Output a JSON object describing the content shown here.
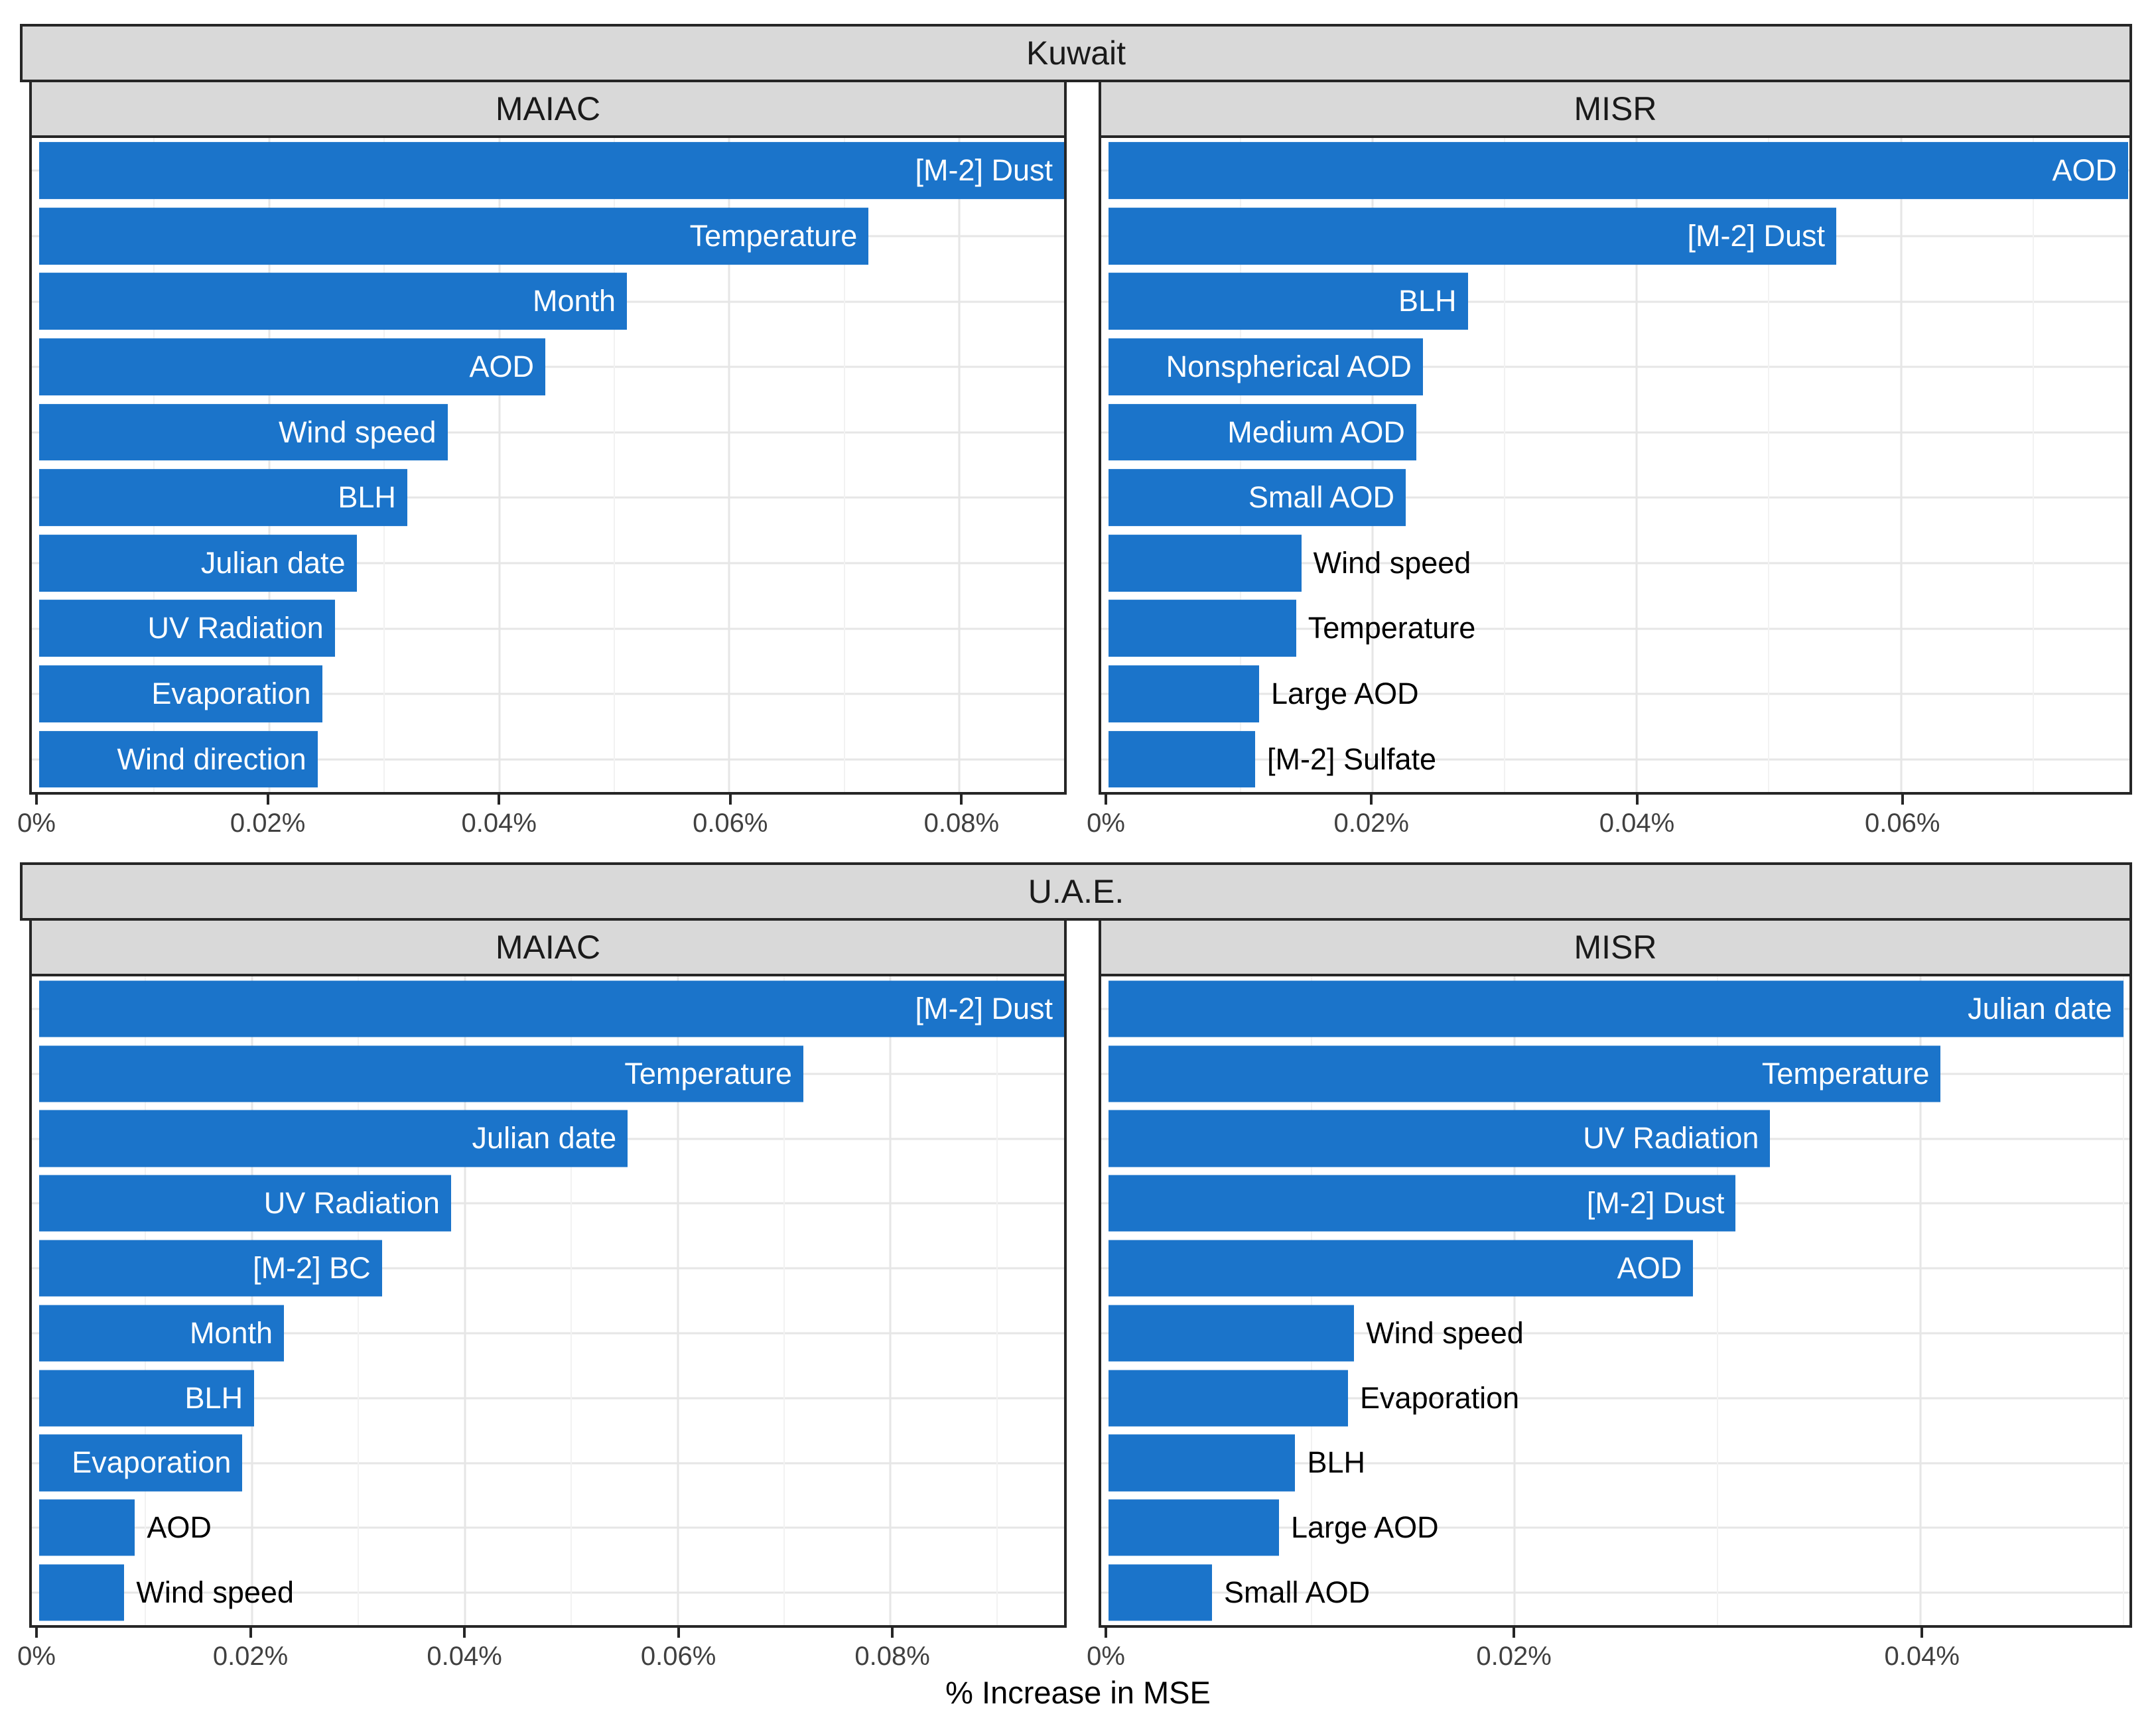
{
  "figure": {
    "xlabel": "% Increase in MSE",
    "colors": {
      "bar": "#1B74CA",
      "strip_bg": "#D9D9D9",
      "border": "#262626",
      "grid_major": "#E6E6E6",
      "grid_minor": "#F2F2F2",
      "tick_label": "#404040",
      "label_inside": "#FFFFFF",
      "label_outside": "#000000"
    }
  },
  "chart_data": [
    {
      "type": "bar",
      "orientation": "horizontal",
      "title": "Kuwait",
      "xlabel": "% Increase in MSE",
      "grid": true,
      "facets": [
        {
          "label": "MAIAC",
          "xlim": [
            0,
            0.0891
          ],
          "tick_values": [
            0,
            0.02,
            0.04,
            0.06,
            0.08
          ],
          "ticks": [
            "0%",
            "0.02%",
            "0.04%",
            "0.06%",
            "0.08%"
          ],
          "minor_step": 0.01,
          "tick_step": 0.02,
          "bars": [
            {
              "label": "[M-2] Dust",
              "value": 0.0891,
              "label_inside": true
            },
            {
              "label": "Temperature",
              "value": 0.0721,
              "label_inside": true
            },
            {
              "label": "Month",
              "value": 0.0511,
              "label_inside": true
            },
            {
              "label": "AOD",
              "value": 0.044,
              "label_inside": true
            },
            {
              "label": "Wind speed",
              "value": 0.0355,
              "label_inside": true
            },
            {
              "label": "BLH",
              "value": 0.032,
              "label_inside": true
            },
            {
              "label": "Julian date",
              "value": 0.0276,
              "label_inside": true
            },
            {
              "label": "UV Radiation",
              "value": 0.0257,
              "label_inside": true
            },
            {
              "label": "Evaporation",
              "value": 0.0246,
              "label_inside": true
            },
            {
              "label": "Wind direction",
              "value": 0.0242,
              "label_inside": true
            }
          ]
        },
        {
          "label": "MISR",
          "xlim": [
            0,
            0.0773
          ],
          "tick_values": [
            0,
            0.02,
            0.04,
            0.06
          ],
          "ticks": [
            "0%",
            "0.02%",
            "0.04%",
            "0.06%"
          ],
          "minor_step": 0.01,
          "tick_step": 0.02,
          "bars": [
            {
              "label": "AOD",
              "value": 0.0772,
              "label_inside": true
            },
            {
              "label": "[M-2] Dust",
              "value": 0.0551,
              "label_inside": true
            },
            {
              "label": "BLH",
              "value": 0.0272,
              "label_inside": true
            },
            {
              "label": "Nonspherical AOD",
              "value": 0.0238,
              "label_inside": true
            },
            {
              "label": "Medium AOD",
              "value": 0.0233,
              "label_inside": true
            },
            {
              "label": "Small AOD",
              "value": 0.0225,
              "label_inside": true
            },
            {
              "label": "Wind speed",
              "value": 0.0146,
              "label_inside": false
            },
            {
              "label": "Temperature",
              "value": 0.0142,
              "label_inside": false
            },
            {
              "label": "Large AOD",
              "value": 0.0114,
              "label_inside": false
            },
            {
              "label": "[M-2] Sulfate",
              "value": 0.0111,
              "label_inside": false
            }
          ]
        }
      ]
    },
    {
      "type": "bar",
      "orientation": "horizontal",
      "title": "U.A.E.",
      "xlabel": "% Increase in MSE",
      "grid": true,
      "facets": [
        {
          "label": "MAIAC",
          "xlim": [
            0,
            0.0963
          ],
          "tick_values": [
            0,
            0.02,
            0.04,
            0.06,
            0.08
          ],
          "ticks": [
            "0%",
            "0.02%",
            "0.04%",
            "0.06%",
            "0.08%"
          ],
          "minor_step": 0.01,
          "tick_step": 0.02,
          "bars": [
            {
              "label": "[M-2] Dust",
              "value": 0.0963,
              "label_inside": true
            },
            {
              "label": "Temperature",
              "value": 0.0718,
              "label_inside": true
            },
            {
              "label": "Julian date",
              "value": 0.0553,
              "label_inside": true
            },
            {
              "label": "UV Radiation",
              "value": 0.0387,
              "label_inside": true
            },
            {
              "label": "[M-2] BC",
              "value": 0.0322,
              "label_inside": true
            },
            {
              "label": "Month",
              "value": 0.023,
              "label_inside": true
            },
            {
              "label": "BLH",
              "value": 0.0202,
              "label_inside": true
            },
            {
              "label": "Evaporation",
              "value": 0.0191,
              "label_inside": true
            },
            {
              "label": "AOD",
              "value": 0.009,
              "label_inside": false
            },
            {
              "label": "Wind speed",
              "value": 0.008,
              "label_inside": false
            }
          ]
        },
        {
          "label": "MISR",
          "xlim": [
            0,
            0.0503
          ],
          "tick_values": [
            0,
            0.02,
            0.04
          ],
          "ticks": [
            "0%",
            "0.02%",
            "0.04%"
          ],
          "minor_step": 0.01,
          "tick_step": 0.02,
          "bars": [
            {
              "label": "Julian date",
              "value": 0.05,
              "label_inside": true
            },
            {
              "label": "Temperature",
              "value": 0.041,
              "label_inside": true
            },
            {
              "label": "UV Radiation",
              "value": 0.0326,
              "label_inside": true
            },
            {
              "label": "[M-2] Dust",
              "value": 0.0309,
              "label_inside": true
            },
            {
              "label": "AOD",
              "value": 0.0288,
              "label_inside": true
            },
            {
              "label": "Wind speed",
              "value": 0.0121,
              "label_inside": false
            },
            {
              "label": "Evaporation",
              "value": 0.0118,
              "label_inside": false
            },
            {
              "label": "BLH",
              "value": 0.0092,
              "label_inside": false
            },
            {
              "label": "Large AOD",
              "value": 0.0084,
              "label_inside": false
            },
            {
              "label": "Small AOD",
              "value": 0.0051,
              "label_inside": false
            }
          ]
        }
      ]
    }
  ]
}
